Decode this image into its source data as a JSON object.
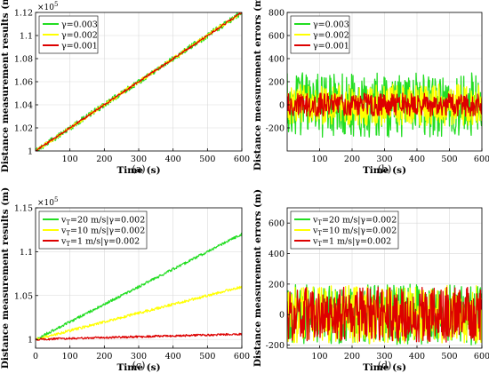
{
  "figure": {
    "colors": {
      "green": "#22dd22",
      "yellow": "#ffff00",
      "red": "#dd0000",
      "axis": "#000000",
      "grid": "#d9d9d9"
    },
    "panels": [
      {
        "id": "a",
        "caption": "(a)",
        "chart_data": {
          "type": "line",
          "title": "",
          "xlabel": "Time (s)",
          "ylabel": "Distance measurement results (m)",
          "exponent_label": "×10",
          "exponent_power": "5",
          "xlim": [
            0,
            600
          ],
          "ylim": [
            1.0,
            1.12
          ],
          "xticks": [
            100,
            200,
            300,
            400,
            500,
            600
          ],
          "yticks": [
            1,
            1.02,
            1.04,
            1.06,
            1.08,
            1.1,
            1.12
          ],
          "ytick_labels": [
            "1",
            "1.02",
            "1.04",
            "1.06",
            "1.08",
            "1.1",
            "1.12"
          ],
          "grid": true,
          "legend_position": "top-left",
          "series": [
            {
              "name": "γ=0.003",
              "color": "green",
              "start": 1.0,
              "end": 1.12,
              "noise_amplitude": 0.0025
            },
            {
              "name": "γ=0.002",
              "color": "yellow",
              "start": 1.0,
              "end": 1.12,
              "noise_amplitude": 0.0015
            },
            {
              "name": "γ=0.001",
              "color": "red",
              "start": 1.0,
              "end": 1.12,
              "noise_amplitude": 0.0008
            }
          ]
        }
      },
      {
        "id": "b",
        "caption": "(b)",
        "chart_data": {
          "type": "line",
          "title": "",
          "xlabel": "Time (s)",
          "ylabel": "Distance measurement errors (m)",
          "xlim": [
            0,
            600
          ],
          "ylim": [
            -400,
            800
          ],
          "xticks": [
            100,
            200,
            300,
            400,
            500,
            600
          ],
          "yticks": [
            -200,
            0,
            200,
            400,
            600,
            800
          ],
          "ytick_labels": [
            "-200",
            "0",
            "200",
            "400",
            "600",
            "800"
          ],
          "grid": true,
          "legend_position": "top-left",
          "series": [
            {
              "name": "γ=0.003",
              "color": "green",
              "mean": 0,
              "noise_amplitude": 280
            },
            {
              "name": "γ=0.002",
              "color": "yellow",
              "mean": 0,
              "noise_amplitude": 180
            },
            {
              "name": "γ=0.001",
              "color": "red",
              "mean": 0,
              "noise_amplitude": 100
            }
          ]
        }
      },
      {
        "id": "c",
        "caption": "(c)",
        "chart_data": {
          "type": "line",
          "title": "",
          "xlabel": "Time (s)",
          "ylabel": "Distance measurement results (m)",
          "exponent_label": "×10",
          "exponent_power": "5",
          "xlim": [
            0,
            600
          ],
          "ylim": [
            0.99,
            1.15
          ],
          "xticks": [
            0,
            100,
            200,
            300,
            400,
            500,
            600
          ],
          "yticks": [
            1,
            1.05,
            1.1,
            1.15
          ],
          "ytick_labels": [
            "1",
            "1.05",
            "1.1",
            "1.15"
          ],
          "grid": true,
          "legend_position": "top-left",
          "series": [
            {
              "name": "v",
              "subscript": "T",
              "suffix": "=20 m/s|γ=0.002",
              "color": "green",
              "start": 1.0,
              "end": 1.12,
              "noise_amplitude": 0.0015
            },
            {
              "name": "v",
              "subscript": "T",
              "suffix": "=10 m/s|γ=0.002",
              "color": "yellow",
              "start": 1.0,
              "end": 1.06,
              "noise_amplitude": 0.0015
            },
            {
              "name": "v",
              "subscript": "T",
              "suffix": "=1 m/s|γ=0.002",
              "color": "red",
              "start": 1.0,
              "end": 1.006,
              "noise_amplitude": 0.0012
            }
          ]
        }
      },
      {
        "id": "d",
        "caption": "(d)",
        "chart_data": {
          "type": "line",
          "title": "",
          "xlabel": "Time (s)",
          "ylabel": "Distance measurement errors (m)",
          "xlim": [
            0,
            600
          ],
          "ylim": [
            -220,
            700
          ],
          "xticks": [
            100,
            200,
            300,
            400,
            500,
            600
          ],
          "yticks": [
            -200,
            0,
            200,
            400,
            600
          ],
          "ytick_labels": [
            "-200",
            "0",
            "200",
            "400",
            "600"
          ],
          "grid": true,
          "legend_position": "top-left",
          "series": [
            {
              "name": "v",
              "subscript": "T",
              "suffix": "=20 m/s|γ=0.002",
              "color": "green",
              "mean": 0,
              "noise_amplitude": 200
            },
            {
              "name": "v",
              "subscript": "T",
              "suffix": "=10 m/s|γ=0.002",
              "color": "yellow",
              "mean": 0,
              "noise_amplitude": 190
            },
            {
              "name": "v",
              "subscript": "T",
              "suffix": "=1 m/s|γ=0.002",
              "color": "red",
              "mean": 0,
              "noise_amplitude": 180
            }
          ]
        }
      }
    ]
  }
}
